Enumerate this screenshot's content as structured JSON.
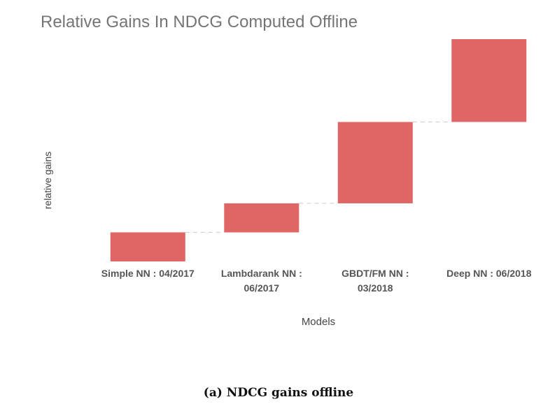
{
  "chart_data": {
    "type": "bar",
    "subtype": "waterfall",
    "title": "Relative Gains In NDCG Computed Offline",
    "xlabel": "Models",
    "ylabel": "relative gains",
    "categories": [
      "Simple NN : 04/2017",
      "Lambdarank NN : 06/2017",
      "GBDT/FM NN : 03/2018",
      "Deep NN : 06/2018"
    ],
    "category_lines": [
      [
        "Simple NN : 04/2017"
      ],
      [
        "Lambdarank NN :",
        "06/2017"
      ],
      [
        "GBDT/FM NN :",
        "03/2018"
      ],
      [
        "Deep NN : 06/2018"
      ]
    ],
    "values": [
      10,
      10,
      28,
      28.5
    ],
    "ylim": [
      0,
      76.5
    ],
    "grid": false,
    "legend": "none",
    "connector_lines": true,
    "bar_color": "#e06666",
    "connector_color": "#cccccc"
  },
  "caption": "(a) NDCG gains offline"
}
